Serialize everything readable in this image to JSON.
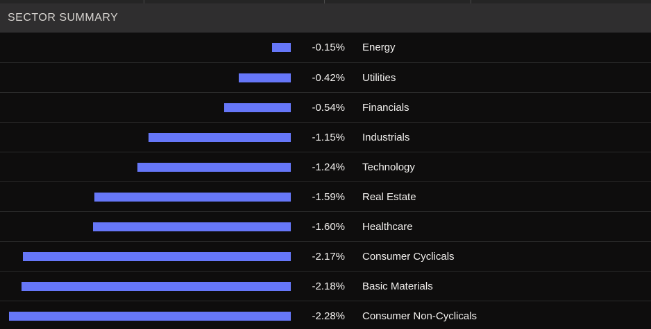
{
  "panel": {
    "title": "SECTOR SUMMARY"
  },
  "chart_data": {
    "type": "bar",
    "orientation": "horizontal",
    "title": "SECTOR SUMMARY",
    "note": "bars right-aligned at a common baseline, extending left for negative % change",
    "categories": [
      "Energy",
      "Utilities",
      "Financials",
      "Industrials",
      "Technology",
      "Real Estate",
      "Healthcare",
      "Consumer Cyclicals",
      "Basic Materials",
      "Consumer Non-Cyclicals"
    ],
    "values": [
      -0.15,
      -0.42,
      -0.54,
      -1.15,
      -1.24,
      -1.59,
      -1.6,
      -2.17,
      -2.18,
      -2.28
    ],
    "value_labels": [
      "-0.15%",
      "-0.42%",
      "-0.54%",
      "-1.15%",
      "-1.24%",
      "-1.59%",
      "-1.60%",
      "-2.17%",
      "-2.18%",
      "-2.28%"
    ],
    "xlim": [
      -2.36,
      0
    ],
    "grid": false,
    "axis_labels_shown": false,
    "bar_color": "#6677f8",
    "text_color": "#f2f0ee"
  },
  "colors": {
    "panel_background": "#0e0d0d",
    "header_background": "#2f2e2f",
    "header_text": "#d6d3cf",
    "row_divider": "#2b2b2b",
    "bar": "#6677f8"
  }
}
